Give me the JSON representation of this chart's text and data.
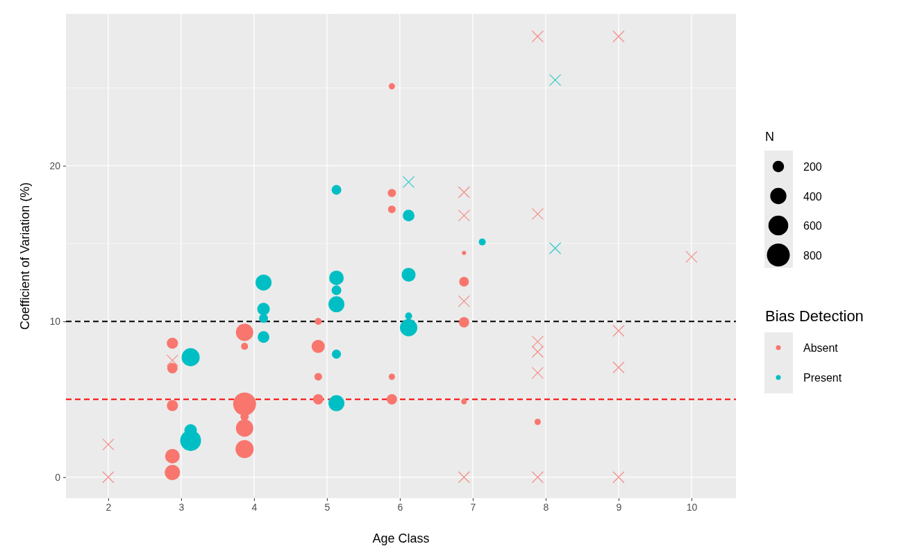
{
  "chart_data": {
    "type": "bubble",
    "xlabel": "Age Class",
    "ylabel": "Coefficient of Variation (%)",
    "legend_title": "Bias Detection",
    "annotations": [
      "N"
    ],
    "xlim": [
      1.42,
      10.61
    ],
    "ylim": [
      -1.35,
      29.75
    ],
    "xticks": [
      2,
      3,
      4,
      5,
      6,
      7,
      8,
      9,
      10
    ],
    "yticks": [
      0,
      10,
      20
    ],
    "grid": true,
    "legend": "right",
    "size_legend": [
      200,
      400,
      600,
      800
    ],
    "ref_lines": [
      {
        "axis": "y",
        "value": 10,
        "color": "#000000",
        "line_style": "dashed"
      },
      {
        "axis": "y",
        "value": 5,
        "color": "#ff0000",
        "line_style": "dashed"
      }
    ],
    "series": [
      {
        "name": "Absent",
        "type": "bubble",
        "marker": "circle",
        "color": "#f8766d",
        "x": [
          2.88,
          2.88,
          2.88,
          2.88,
          2.88,
          3.87,
          3.87,
          3.87,
          3.87,
          3.87,
          3.87,
          4.88,
          4.88,
          4.88,
          4.88,
          5.89,
          5.89,
          5.89,
          5.89,
          5.89,
          6.88,
          6.88,
          6.88,
          6.88,
          7.89
        ],
        "values": [
          8.6,
          7.0,
          4.6,
          1.35,
          0.3,
          9.3,
          8.4,
          4.7,
          3.9,
          3.15,
          1.8,
          10.0,
          8.4,
          6.45,
          5.0,
          25.1,
          18.25,
          17.2,
          6.45,
          5.0,
          14.4,
          12.55,
          9.95,
          4.85,
          3.55
        ],
        "sizes": [
          190,
          165,
          190,
          325,
          355,
          460,
          75,
          800,
          105,
          460,
          500,
          75,
          265,
          90,
          165,
          60,
          105,
          90,
          60,
          165,
          26,
          145,
          165,
          47,
          60
        ]
      },
      {
        "name": "Present",
        "type": "bubble",
        "marker": "circle",
        "color": "#00bfc4",
        "x": [
          3.13,
          3.13,
          3.13,
          4.13,
          4.13,
          4.13,
          4.13,
          5.13,
          5.13,
          5.13,
          5.13,
          5.13,
          5.13,
          6.12,
          6.12,
          6.12,
          6.12,
          7.13
        ],
        "values": [
          7.7,
          3.0,
          2.35,
          12.5,
          10.8,
          10.2,
          9.0,
          18.45,
          12.8,
          12.0,
          11.1,
          7.9,
          4.75,
          16.8,
          13.0,
          10.35,
          9.6,
          15.1
        ],
        "sizes": [
          500,
          240,
          660,
          390,
          240,
          125,
          210,
          145,
          325,
          145,
          390,
          125,
          390,
          210,
          295,
          75,
          460,
          75
        ]
      },
      {
        "type": "scatter",
        "marker": "cross",
        "color": "#f8766d",
        "x": [
          2,
          2,
          2.88,
          6.88,
          6.88,
          6.88,
          6.88,
          7.89,
          7.89,
          7.89,
          7.89,
          7.89,
          7.89,
          9,
          9,
          9,
          9,
          10
        ],
        "values": [
          2.1,
          0,
          7.5,
          18.3,
          16.8,
          11.3,
          0,
          28.3,
          16.9,
          8.7,
          8.05,
          6.7,
          0,
          28.3,
          9.4,
          7.05,
          0,
          14.15
        ]
      },
      {
        "type": "scatter",
        "marker": "cross",
        "color": "#00bfc4",
        "x": [
          6.12,
          8.13,
          8.13
        ],
        "values": [
          18.95,
          25.5,
          14.7
        ]
      }
    ]
  }
}
